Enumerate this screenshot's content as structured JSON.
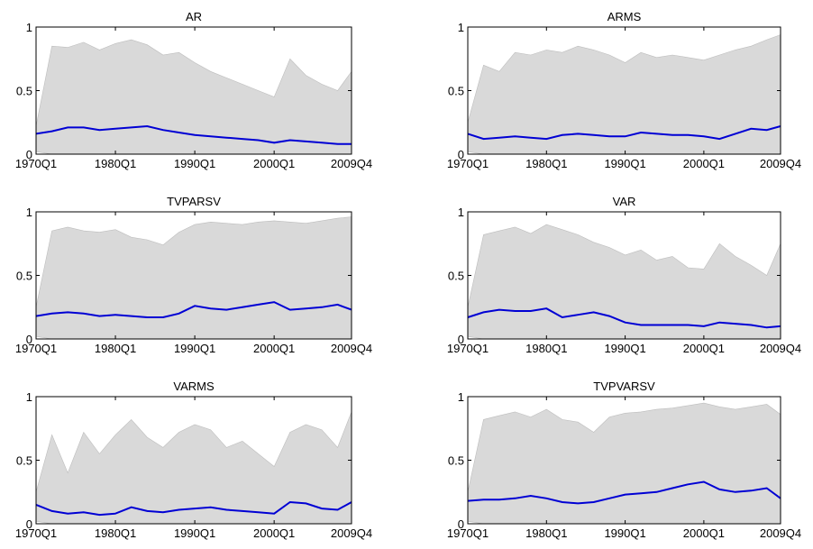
{
  "chart_data": [
    {
      "type": "area",
      "title": "AR",
      "x_ticks": [
        "1970Q1",
        "1980Q1",
        "1990Q1",
        "2000Q1",
        "2009Q4"
      ],
      "y_ticks": [
        "0",
        "0.5",
        "1"
      ],
      "ylim": [
        0,
        1
      ],
      "grid": false,
      "x": [
        "1970Q1",
        "1972Q1",
        "1974Q1",
        "1976Q1",
        "1978Q1",
        "1980Q1",
        "1982Q1",
        "1984Q1",
        "1986Q1",
        "1988Q1",
        "1990Q1",
        "1992Q1",
        "1994Q1",
        "1996Q1",
        "1998Q1",
        "2000Q1",
        "2002Q1",
        "2004Q1",
        "2006Q1",
        "2008Q1",
        "2009Q4"
      ],
      "series": [
        {
          "values": [
            0.16,
            0.18,
            0.21,
            0.21,
            0.19,
            0.2,
            0.21,
            0.22,
            0.19,
            0.17,
            0.15,
            0.14,
            0.13,
            0.12,
            0.11,
            0.09,
            0.11,
            0.1,
            0.09,
            0.08,
            0.08
          ]
        }
      ],
      "band": {
        "upper": [
          0.22,
          0.85,
          0.84,
          0.88,
          0.82,
          0.87,
          0.9,
          0.86,
          0.78,
          0.8,
          0.72,
          0.65,
          0.6,
          0.55,
          0.5,
          0.45,
          0.75,
          0.62,
          0.55,
          0.5,
          0.65
        ],
        "lower": [
          0.02,
          0.0,
          0.0,
          0.0,
          0.0,
          0.0,
          0.0,
          0.0,
          0.0,
          0.0,
          0.0,
          0.0,
          0.0,
          0.0,
          0.0,
          0.0,
          0.0,
          0.0,
          0.0,
          0.0,
          0.0
        ]
      },
      "colors": {
        "line": "#0000d4",
        "band": "#d9d9d9"
      }
    },
    {
      "type": "area",
      "title": "ARMS",
      "x_ticks": [
        "1970Q1",
        "1980Q1",
        "1990Q1",
        "2000Q1",
        "2009Q4"
      ],
      "y_ticks": [
        "0",
        "0.5",
        "1"
      ],
      "ylim": [
        0,
        1
      ],
      "grid": false,
      "x": [
        "1970Q1",
        "1972Q1",
        "1974Q1",
        "1976Q1",
        "1978Q1",
        "1980Q1",
        "1982Q1",
        "1984Q1",
        "1986Q1",
        "1988Q1",
        "1990Q1",
        "1992Q1",
        "1994Q1",
        "1996Q1",
        "1998Q1",
        "2000Q1",
        "2002Q1",
        "2004Q1",
        "2006Q1",
        "2008Q1",
        "2009Q4"
      ],
      "series": [
        {
          "values": [
            0.16,
            0.12,
            0.13,
            0.14,
            0.13,
            0.12,
            0.15,
            0.16,
            0.15,
            0.14,
            0.14,
            0.17,
            0.16,
            0.15,
            0.15,
            0.14,
            0.12,
            0.16,
            0.2,
            0.19,
            0.22
          ]
        }
      ],
      "band": {
        "upper": [
          0.25,
          0.7,
          0.65,
          0.8,
          0.78,
          0.82,
          0.8,
          0.85,
          0.82,
          0.78,
          0.72,
          0.8,
          0.76,
          0.78,
          0.76,
          0.74,
          0.78,
          0.82,
          0.85,
          0.9,
          0.94
        ],
        "lower": [
          0.02,
          0.0,
          0.0,
          0.0,
          0.0,
          0.0,
          0.0,
          0.0,
          0.0,
          0.0,
          0.0,
          0.0,
          0.0,
          0.0,
          0.0,
          0.0,
          0.0,
          0.0,
          0.0,
          0.0,
          0.0
        ]
      },
      "colors": {
        "line": "#0000d4",
        "band": "#d9d9d9"
      }
    },
    {
      "type": "area",
      "title": "TVPARSV",
      "x_ticks": [
        "1970Q1",
        "1980Q1",
        "1990Q1",
        "2000Q1",
        "2009Q4"
      ],
      "y_ticks": [
        "0",
        "0.5",
        "1"
      ],
      "ylim": [
        0,
        1
      ],
      "grid": false,
      "x": [
        "1970Q1",
        "1972Q1",
        "1974Q1",
        "1976Q1",
        "1978Q1",
        "1980Q1",
        "1982Q1",
        "1984Q1",
        "1986Q1",
        "1988Q1",
        "1990Q1",
        "1992Q1",
        "1994Q1",
        "1996Q1",
        "1998Q1",
        "2000Q1",
        "2002Q1",
        "2004Q1",
        "2006Q1",
        "2008Q1",
        "2009Q4"
      ],
      "series": [
        {
          "values": [
            0.18,
            0.2,
            0.21,
            0.2,
            0.18,
            0.19,
            0.18,
            0.17,
            0.17,
            0.2,
            0.26,
            0.24,
            0.23,
            0.25,
            0.27,
            0.29,
            0.23,
            0.24,
            0.25,
            0.27,
            0.23
          ]
        }
      ],
      "band": {
        "upper": [
          0.25,
          0.85,
          0.88,
          0.85,
          0.84,
          0.86,
          0.8,
          0.78,
          0.74,
          0.84,
          0.9,
          0.92,
          0.91,
          0.9,
          0.92,
          0.93,
          0.92,
          0.91,
          0.93,
          0.95,
          0.96
        ],
        "lower": [
          0.02,
          0.0,
          0.0,
          0.0,
          0.0,
          0.0,
          0.0,
          0.0,
          0.0,
          0.0,
          0.0,
          0.0,
          0.0,
          0.0,
          0.0,
          0.0,
          0.0,
          0.0,
          0.0,
          0.0,
          0.0
        ]
      },
      "colors": {
        "line": "#0000d4",
        "band": "#d9d9d9"
      }
    },
    {
      "type": "area",
      "title": "VAR",
      "x_ticks": [
        "1970Q1",
        "1980Q1",
        "1990Q1",
        "2000Q1",
        "2009Q4"
      ],
      "y_ticks": [
        "0",
        "0.5",
        "1"
      ],
      "ylim": [
        0,
        1
      ],
      "grid": false,
      "x": [
        "1970Q1",
        "1972Q1",
        "1974Q1",
        "1976Q1",
        "1978Q1",
        "1980Q1",
        "1982Q1",
        "1984Q1",
        "1986Q1",
        "1988Q1",
        "1990Q1",
        "1992Q1",
        "1994Q1",
        "1996Q1",
        "1998Q1",
        "2000Q1",
        "2002Q1",
        "2004Q1",
        "2006Q1",
        "2008Q1",
        "2009Q4"
      ],
      "series": [
        {
          "values": [
            0.17,
            0.21,
            0.23,
            0.22,
            0.22,
            0.24,
            0.17,
            0.19,
            0.21,
            0.18,
            0.13,
            0.11,
            0.11,
            0.11,
            0.11,
            0.1,
            0.13,
            0.12,
            0.11,
            0.09,
            0.1
          ]
        }
      ],
      "band": {
        "upper": [
          0.25,
          0.82,
          0.85,
          0.88,
          0.83,
          0.9,
          0.86,
          0.82,
          0.76,
          0.72,
          0.66,
          0.7,
          0.62,
          0.65,
          0.56,
          0.55,
          0.75,
          0.65,
          0.58,
          0.5,
          0.75
        ],
        "lower": [
          0.02,
          0.0,
          0.0,
          0.0,
          0.0,
          0.0,
          0.0,
          0.0,
          0.0,
          0.0,
          0.0,
          0.0,
          0.0,
          0.0,
          0.0,
          0.0,
          0.0,
          0.0,
          0.0,
          0.0,
          0.0
        ]
      },
      "colors": {
        "line": "#0000d4",
        "band": "#d9d9d9"
      }
    },
    {
      "type": "area",
      "title": "VARMS",
      "x_ticks": [
        "1970Q1",
        "1980Q1",
        "1990Q1",
        "2000Q1",
        "2009Q4"
      ],
      "y_ticks": [
        "0",
        "0.5",
        "1"
      ],
      "ylim": [
        0,
        1
      ],
      "grid": false,
      "x": [
        "1970Q1",
        "1972Q1",
        "1974Q1",
        "1976Q1",
        "1978Q1",
        "1980Q1",
        "1982Q1",
        "1984Q1",
        "1986Q1",
        "1988Q1",
        "1990Q1",
        "1992Q1",
        "1994Q1",
        "1996Q1",
        "1998Q1",
        "2000Q1",
        "2002Q1",
        "2004Q1",
        "2006Q1",
        "2008Q1",
        "2009Q4"
      ],
      "series": [
        {
          "values": [
            0.15,
            0.1,
            0.08,
            0.09,
            0.07,
            0.08,
            0.13,
            0.1,
            0.09,
            0.11,
            0.12,
            0.13,
            0.11,
            0.1,
            0.09,
            0.08,
            0.17,
            0.16,
            0.12,
            0.11,
            0.17
          ]
        }
      ],
      "band": {
        "upper": [
          0.25,
          0.7,
          0.4,
          0.72,
          0.55,
          0.7,
          0.82,
          0.68,
          0.6,
          0.72,
          0.78,
          0.74,
          0.6,
          0.65,
          0.55,
          0.45,
          0.72,
          0.78,
          0.74,
          0.6,
          0.88
        ],
        "lower": [
          0.02,
          0.0,
          0.0,
          0.0,
          0.0,
          0.0,
          0.0,
          0.0,
          0.0,
          0.0,
          0.0,
          0.0,
          0.0,
          0.0,
          0.0,
          0.0,
          0.0,
          0.0,
          0.0,
          0.0,
          0.0
        ]
      },
      "colors": {
        "line": "#0000d4",
        "band": "#d9d9d9"
      }
    },
    {
      "type": "area",
      "title": "TVPVARSV",
      "x_ticks": [
        "1970Q1",
        "1980Q1",
        "1990Q1",
        "2000Q1",
        "2009Q4"
      ],
      "y_ticks": [
        "0",
        "0.5",
        "1"
      ],
      "ylim": [
        0,
        1
      ],
      "grid": false,
      "x": [
        "1970Q1",
        "1972Q1",
        "1974Q1",
        "1976Q1",
        "1978Q1",
        "1980Q1",
        "1982Q1",
        "1984Q1",
        "1986Q1",
        "1988Q1",
        "1990Q1",
        "1992Q1",
        "1994Q1",
        "1996Q1",
        "1998Q1",
        "2000Q1",
        "2002Q1",
        "2004Q1",
        "2006Q1",
        "2008Q1",
        "2009Q4"
      ],
      "series": [
        {
          "values": [
            0.18,
            0.19,
            0.19,
            0.2,
            0.22,
            0.2,
            0.17,
            0.16,
            0.17,
            0.2,
            0.23,
            0.24,
            0.25,
            0.28,
            0.31,
            0.33,
            0.27,
            0.25,
            0.26,
            0.28,
            0.2
          ]
        }
      ],
      "band": {
        "upper": [
          0.25,
          0.82,
          0.85,
          0.88,
          0.84,
          0.9,
          0.82,
          0.8,
          0.72,
          0.84,
          0.87,
          0.88,
          0.9,
          0.91,
          0.93,
          0.95,
          0.92,
          0.9,
          0.92,
          0.94,
          0.86
        ],
        "lower": [
          0.02,
          0.0,
          0.0,
          0.0,
          0.0,
          0.0,
          0.0,
          0.0,
          0.0,
          0.0,
          0.0,
          0.0,
          0.0,
          0.0,
          0.0,
          0.0,
          0.0,
          0.0,
          0.0,
          0.0,
          0.0
        ]
      },
      "colors": {
        "line": "#0000d4",
        "band": "#d9d9d9"
      }
    }
  ]
}
